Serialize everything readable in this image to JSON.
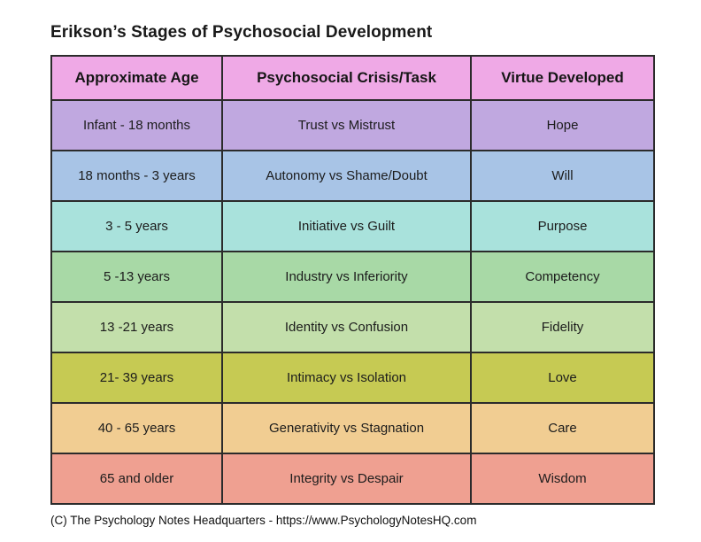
{
  "title": "Erikson’s Stages of Psychosocial Development",
  "footer": {
    "text": "(C) The Psychology Notes Headquarters - https://www.PsychologyNotesHQ.com"
  },
  "colors": {
    "border": "#2b2b2b",
    "header_bg": "#efa9e6"
  },
  "table": {
    "header_color": "#efa9e6",
    "columns": [
      "Approximate Age",
      "Psychosocial Crisis/Task",
      "Virtue Developed"
    ],
    "rows": [
      {
        "age": "Infant - 18 months",
        "crisis": "Trust vs Mistrust",
        "virtue": "Hope",
        "color": "#c0a8e0"
      },
      {
        "age": "18 months - 3 years",
        "crisis": "Autonomy vs Shame/Doubt",
        "virtue": "Will",
        "color": "#a8c4e6"
      },
      {
        "age": "3 - 5 years",
        "crisis": "Initiative vs Guilt",
        "virtue": "Purpose",
        "color": "#a9e2dc"
      },
      {
        "age": "5 -13 years",
        "crisis": "Industry vs Inferiority",
        "virtue": "Competency",
        "color": "#a8d9a6"
      },
      {
        "age": "13 -21 years",
        "crisis": "Identity vs Confusion",
        "virtue": "Fidelity",
        "color": "#c3dfab"
      },
      {
        "age": "21- 39 years",
        "crisis": "Intimacy vs Isolation",
        "virtue": "Love",
        "color": "#c6ca53"
      },
      {
        "age": "40 - 65 years",
        "crisis": "Generativity vs Stagnation",
        "virtue": "Care",
        "color": "#f1cd92"
      },
      {
        "age": "65 and older",
        "crisis": "Integrity vs Despair",
        "virtue": "Wisdom",
        "color": "#efa091"
      }
    ]
  },
  "chart_data": {
    "type": "table",
    "title": "Erikson’s Stages of Psychosocial Development",
    "columns": [
      "Approximate Age",
      "Psychosocial Crisis/Task",
      "Virtue Developed"
    ],
    "rows": [
      [
        "Infant - 18 months",
        "Trust vs Mistrust",
        "Hope"
      ],
      [
        "18 months - 3 years",
        "Autonomy vs Shame/Doubt",
        "Will"
      ],
      [
        "3 - 5 years",
        "Initiative vs Guilt",
        "Purpose"
      ],
      [
        "5 -13 years",
        "Industry vs Inferiority",
        "Competency"
      ],
      [
        "13 -21 years",
        "Identity vs Confusion",
        "Fidelity"
      ],
      [
        "21- 39 years",
        "Intimacy vs Isolation",
        "Love"
      ],
      [
        "40 - 65 years",
        "Generativity vs Stagnation",
        "Care"
      ],
      [
        "65 and older",
        "Integrity vs Despair",
        "Wisdom"
      ]
    ],
    "row_colors": [
      "#c0a8e0",
      "#a8c4e6",
      "#a9e2dc",
      "#a8d9a6",
      "#c3dfab",
      "#c6ca53",
      "#f1cd92",
      "#efa091"
    ],
    "header_color": "#efa9e6",
    "source_note": "(C) The Psychology Notes Headquarters - https://www.PsychologyNotesHQ.com"
  }
}
